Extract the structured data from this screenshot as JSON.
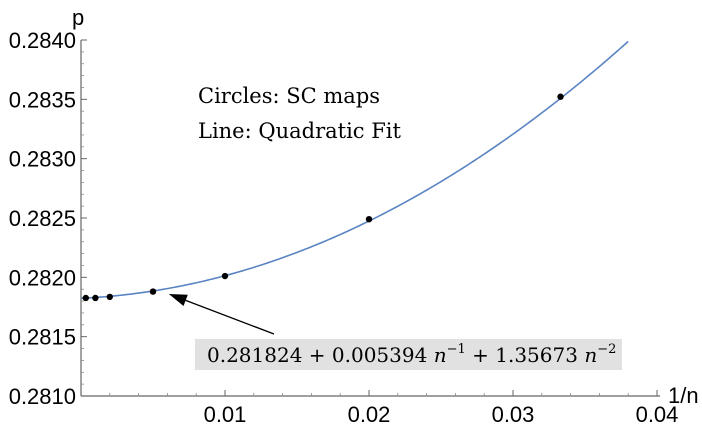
{
  "chart_data": {
    "type": "scatter",
    "xlabel": "1/n",
    "ylabel": "p",
    "xlim": [
      0.0,
      0.04
    ],
    "ylim": [
      0.281,
      0.284
    ],
    "x_ticks": [
      0.01,
      0.02,
      0.03,
      0.04
    ],
    "x_tick_labels": [
      "0.01",
      "0.02",
      "0.03",
      "0.04"
    ],
    "y_ticks": [
      0.281,
      0.2815,
      0.282,
      0.2825,
      0.283,
      0.2835,
      0.284
    ],
    "y_tick_labels": [
      "0.2810",
      "0.2815",
      "0.2820",
      "0.2825",
      "0.2830",
      "0.2835",
      "0.2840"
    ],
    "grid": false,
    "series": [
      {
        "kind": "points",
        "x": [
          0.000333,
          0.001,
          0.002,
          0.005,
          0.01,
          0.02,
          0.0333
        ],
        "y": [
          0.281826,
          0.281826,
          0.281835,
          0.28188,
          0.282011,
          0.28249,
          0.283522
        ]
      },
      {
        "kind": "curve",
        "coefficients": [
          0.281824,
          0.005394,
          1.35673
        ],
        "x_range": [
          0.0,
          0.038
        ]
      }
    ],
    "annotations": {
      "legend_circles": "Circles: SC maps",
      "legend_line": "Line: Quadratic Fit",
      "formula_main": "0.281824 + 0.005394 ",
      "formula_n1": "n",
      "formula_exp1": "−1",
      "formula_mid": " + 1.35673 ",
      "formula_n2": "n",
      "formula_exp2": "−2",
      "arrow_target_x": 0.0061,
      "arrow_target_y": 0.28186
    },
    "colors": {
      "curve": "#5a84c2",
      "points": "#000000",
      "formula_background": "#e1e1e1"
    }
  }
}
